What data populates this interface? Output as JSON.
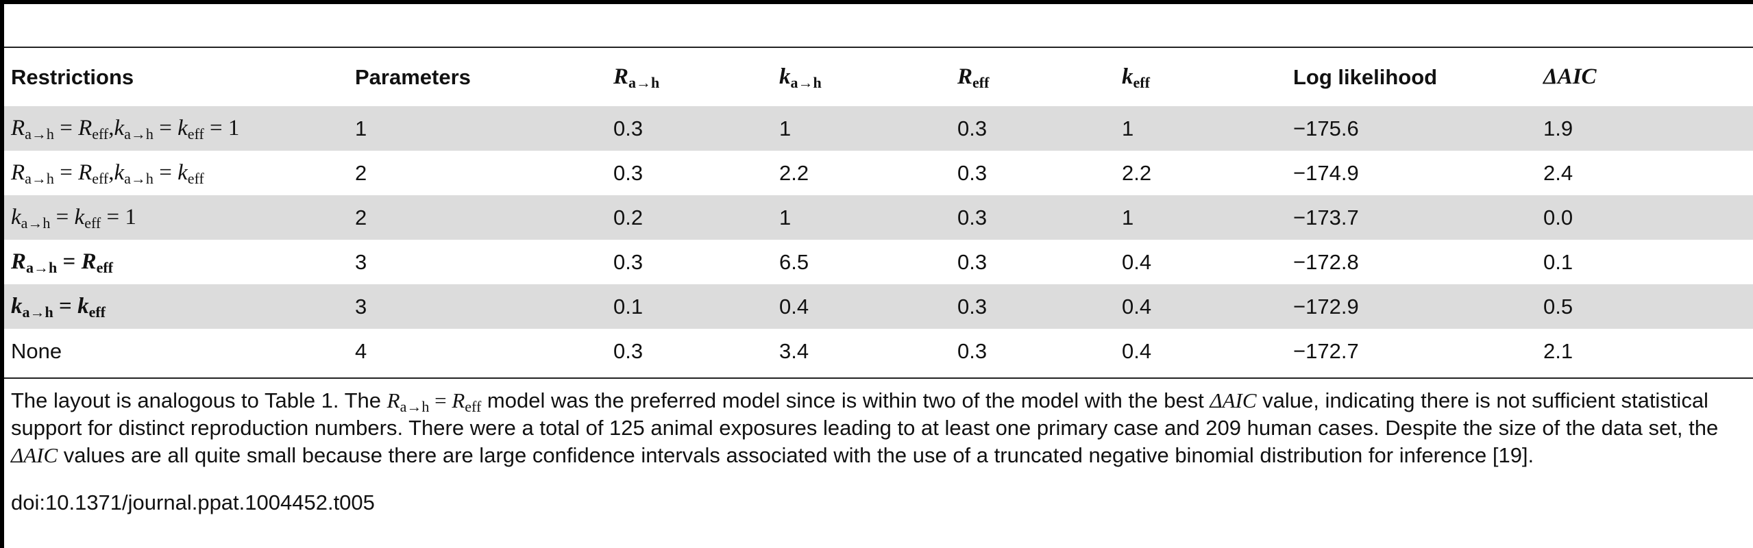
{
  "table": {
    "columns": [
      "Restrictions",
      "Parameters",
      "Ra→h",
      "ka→h",
      "Reff",
      "keff",
      "Log likelihood",
      "ΔAIC"
    ],
    "rows": [
      {
        "restriction": "Ra→h = Reff, ka→h = keff = 1",
        "params": "1",
        "r_ah": "0.3",
        "k_ah": "1",
        "r_eff": "0.3",
        "k_eff": "1",
        "loglik": "−175.6",
        "daic": "1.9"
      },
      {
        "restriction": "Ra→h = Reff, ka→h = keff",
        "params": "2",
        "r_ah": "0.3",
        "k_ah": "2.2",
        "r_eff": "0.3",
        "k_eff": "2.2",
        "loglik": "−174.9",
        "daic": "2.4"
      },
      {
        "restriction": "ka→h = keff = 1",
        "params": "2",
        "r_ah": "0.2",
        "k_ah": "1",
        "r_eff": "0.3",
        "k_eff": "1",
        "loglik": "−173.7",
        "daic": "0.0"
      },
      {
        "restriction": "Ra→h = Reff",
        "params": "3",
        "r_ah": "0.3",
        "k_ah": "6.5",
        "r_eff": "0.3",
        "k_eff": "0.4",
        "loglik": "−172.8",
        "daic": "0.1"
      },
      {
        "restriction": "ka→h = keff",
        "params": "3",
        "r_ah": "0.1",
        "k_ah": "0.4",
        "r_eff": "0.3",
        "k_eff": "0.4",
        "loglik": "−172.9",
        "daic": "0.5"
      },
      {
        "restriction": "None",
        "params": "4",
        "r_ah": "0.3",
        "k_ah": "3.4",
        "r_eff": "0.3",
        "k_eff": "0.4",
        "loglik": "−172.7",
        "daic": "2.1"
      }
    ]
  },
  "caption": {
    "p1": "The layout is analogous to Table 1. The ",
    "p2": " model was the preferred model since is within two of the model with the best ",
    "p3": " value, indicating there is not sufficient statistical support for distinct reproduction numbers. There were a total of 125 animal exposures leading to at least one primary case and 209 human cases. Despite the size of the data set, the ",
    "p4": " values are all quite small because there are large confidence intervals associated with the use of a truncated negative binomial distribution for inference [19]."
  },
  "doi": "doi:10.1371/journal.ppat.1004452.t005"
}
